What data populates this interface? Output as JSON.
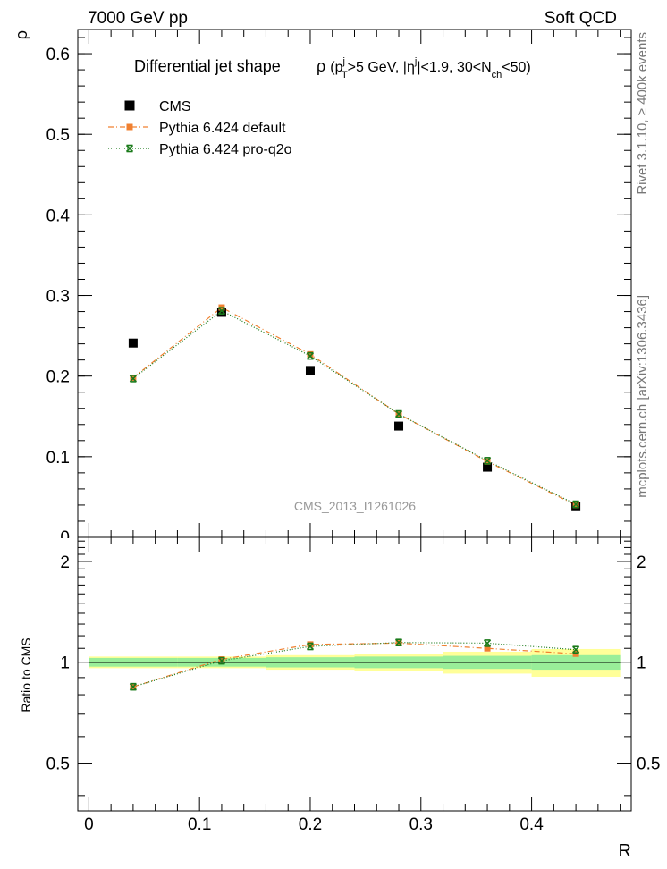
{
  "header": {
    "left_label": "7000 GeV pp",
    "right_label": "Soft QCD"
  },
  "side_text": {
    "rivet": "Rivet 3.1.10, ≥ 400k events",
    "mcplots": "mcplots.cern.ch [arXiv:1306.3436]"
  },
  "watermark": "CMS_2013_I1261026",
  "chart_data": [
    {
      "type": "scatter",
      "title": "Differential jet shape",
      "title_formula_parts": {
        "rho": "ρ",
        "p": "(p",
        "p_sup": "j",
        "p_sub": "T",
        "gt5": ">5 GeV, |η",
        "eta_sup": "j",
        "rest": "|<1.9, 30<N",
        "n_sub": "ch",
        "end": "<50)"
      },
      "ylabel": "ρ",
      "xlabel": "",
      "ylim": [
        0,
        0.63
      ],
      "xlim": [
        -0.01,
        0.49
      ],
      "yticks": [
        {
          "value": 0.1,
          "label": "0.1"
        },
        {
          "value": 0.2,
          "label": "0.2"
        },
        {
          "value": 0.3,
          "label": "0.3"
        },
        {
          "value": 0.4,
          "label": "0.4"
        },
        {
          "value": 0.5,
          "label": "0.5"
        },
        {
          "value": 0.6,
          "label": "0.6"
        }
      ],
      "y_zero_label": "0",
      "x": [
        0.04,
        0.12,
        0.2,
        0.28,
        0.36,
        0.44
      ],
      "series": [
        {
          "name": "CMS",
          "values": [
            0.241,
            0.279,
            0.207,
            0.138,
            0.087,
            0.038
          ],
          "color": "#000000",
          "marker": "square"
        },
        {
          "name": "Pythia 6.424 default",
          "values": [
            0.198,
            0.285,
            0.227,
            0.153,
            0.094,
            0.04
          ],
          "color": "#f08030",
          "marker": "square",
          "line": "dashdot"
        },
        {
          "name": "Pythia 6.424 pro-q2o",
          "values": [
            0.197,
            0.281,
            0.225,
            0.153,
            0.095,
            0.041
          ],
          "color": "#1a7a1a",
          "marker": "star",
          "line": "dotted"
        }
      ],
      "legend_position": "top-left",
      "grid": false
    },
    {
      "type": "scatter",
      "ylabel": "Ratio to CMS",
      "xlabel": "R",
      "ylim": [
        0.36,
        2.36
      ],
      "xlim": [
        -0.01,
        0.49
      ],
      "yticks": [
        {
          "value": 0.5,
          "label": "0.5"
        },
        {
          "value": 1.0,
          "label": "1"
        },
        {
          "value": 2.0,
          "label": "2"
        }
      ],
      "xticks": [
        {
          "value": 0.0,
          "label": "0"
        },
        {
          "value": 0.1,
          "label": "0.1"
        },
        {
          "value": 0.2,
          "label": "0.2"
        },
        {
          "value": 0.3,
          "label": "0.3"
        },
        {
          "value": 0.4,
          "label": "0.4"
        }
      ],
      "x": [
        0.04,
        0.12,
        0.2,
        0.28,
        0.36,
        0.44
      ],
      "bin_edges": [
        0.0,
        0.08,
        0.16,
        0.24,
        0.32,
        0.4,
        0.48
      ],
      "band_green_halfwidth": [
        0.03,
        0.03,
        0.035,
        0.04,
        0.045,
        0.05
      ],
      "band_yellow_halfwidth": [
        0.04,
        0.04,
        0.05,
        0.06,
        0.075,
        0.095
      ],
      "band_green_color": "#99ee99",
      "band_yellow_color": "#ffff99",
      "series": [
        {
          "name": "Pythia 6.424 default",
          "values": [
            0.845,
            1.02,
            1.13,
            1.14,
            1.1,
            1.06
          ],
          "color": "#f08030",
          "marker": "square",
          "line": "dashdot"
        },
        {
          "name": "Pythia 6.424 pro-q2o",
          "values": [
            0.845,
            1.01,
            1.115,
            1.145,
            1.14,
            1.09
          ],
          "color": "#1a7a1a",
          "marker": "star",
          "line": "dotted"
        }
      ]
    }
  ]
}
